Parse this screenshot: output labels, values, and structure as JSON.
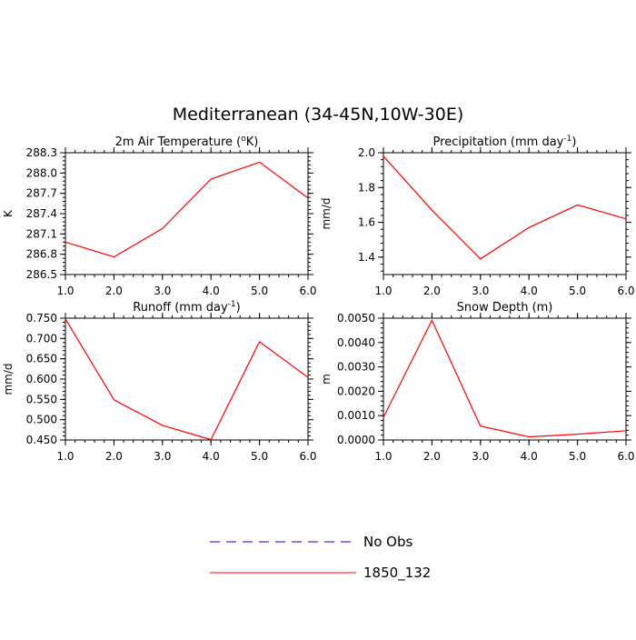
{
  "figure": {
    "title": "Mediterranean (34-45N,10W-30E)"
  },
  "legend": {
    "entries": [
      {
        "label": "No Obs",
        "color": "#0000ff",
        "style": "dashed"
      },
      {
        "label": "1850_132",
        "color": "#ff0000",
        "style": "solid"
      }
    ]
  },
  "chart_data": [
    {
      "type": "line",
      "title_main": "2m Air Temperature (",
      "title_sup": "o",
      "title_tail": "K)",
      "ylabel": "K",
      "x": [
        1,
        2,
        3,
        4,
        5,
        6
      ],
      "xticks": [
        "1.0",
        "2.0",
        "3.0",
        "4.0",
        "5.0",
        "6.0"
      ],
      "xlim": [
        1,
        6
      ],
      "ylim": [
        286.5,
        288.3
      ],
      "yticks": [
        286.5,
        286.8,
        287.1,
        287.4,
        287.7,
        288.0,
        288.3
      ],
      "ytick_labels": [
        "286.5",
        "286.8",
        "287.1",
        "287.4",
        "287.7",
        "288.0",
        "288.3"
      ],
      "series": [
        {
          "name": "1850_132",
          "color": "#ff0000",
          "values": [
            286.98,
            286.76,
            287.18,
            287.91,
            288.16,
            287.63
          ]
        }
      ]
    },
    {
      "type": "line",
      "title_main": "Precipitation (mm day",
      "title_sup": "-1",
      "title_tail": ")",
      "ylabel": "mm/d",
      "x": [
        1,
        2,
        3,
        4,
        5,
        6
      ],
      "xticks": [
        "1.0",
        "2.0",
        "3.0",
        "4.0",
        "5.0",
        "6.0"
      ],
      "xlim": [
        1,
        6
      ],
      "ylim": [
        1.3,
        2.0
      ],
      "yticks": [
        1.4,
        1.6,
        1.8,
        2.0
      ],
      "ytick_labels": [
        "1.4",
        "1.6",
        "1.8",
        "2.0"
      ],
      "series": [
        {
          "name": "1850_132",
          "color": "#ff0000",
          "values": [
            1.98,
            1.67,
            1.39,
            1.57,
            1.7,
            1.62
          ]
        }
      ]
    },
    {
      "type": "line",
      "title_main": "Runoff (mm day",
      "title_sup": "-1",
      "title_tail": ")",
      "ylabel": "mm/d",
      "x": [
        1,
        2,
        3,
        4,
        5,
        6
      ],
      "xticks": [
        "1.0",
        "2.0",
        "3.0",
        "4.0",
        "5.0",
        "6.0"
      ],
      "xlim": [
        1,
        6
      ],
      "ylim": [
        0.45,
        0.75
      ],
      "yticks": [
        0.45,
        0.5,
        0.55,
        0.6,
        0.65,
        0.7,
        0.75
      ],
      "ytick_labels": [
        "0.450",
        "0.500",
        "0.550",
        "0.600",
        "0.650",
        "0.700",
        "0.750"
      ],
      "series": [
        {
          "name": "1850_132",
          "color": "#ff0000",
          "values": [
            0.748,
            0.549,
            0.486,
            0.451,
            0.692,
            0.604
          ]
        }
      ]
    },
    {
      "type": "line",
      "title_main": "Snow Depth (m)",
      "title_sup": "",
      "title_tail": "",
      "ylabel": "m",
      "x": [
        1,
        2,
        3,
        4,
        5,
        6
      ],
      "xticks": [
        "1.0",
        "2.0",
        "3.0",
        "4.0",
        "5.0",
        "6.0"
      ],
      "xlim": [
        1,
        6
      ],
      "ylim": [
        0,
        0.005
      ],
      "yticks": [
        0,
        0.001,
        0.002,
        0.003,
        0.004,
        0.005
      ],
      "ytick_labels": [
        "0.0000",
        "0.0010",
        "0.0020",
        "0.0030",
        "0.0040",
        "0.0050"
      ],
      "series": [
        {
          "name": "1850_132",
          "color": "#ff0000",
          "values": [
            0.00093,
            0.00491,
            0.00057,
            0.00013,
            0.00024,
            0.00038
          ]
        }
      ]
    }
  ]
}
